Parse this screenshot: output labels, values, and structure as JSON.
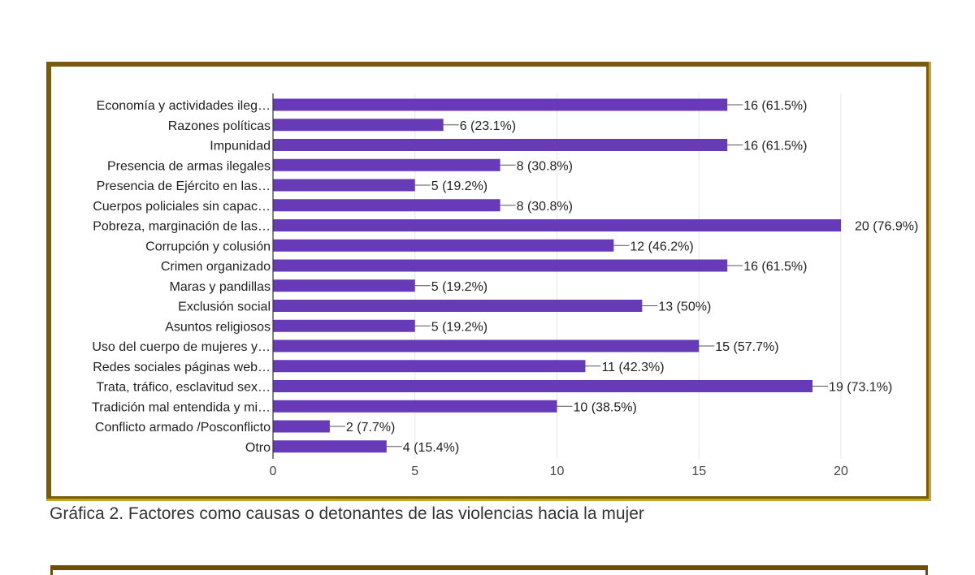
{
  "chart_data": {
    "type": "bar",
    "orientation": "horizontal",
    "categories": [
      "Economía y actividades ileg…",
      "Razones políticas",
      "Impunidad",
      "Presencia de armas ilegales",
      "Presencia de Ejército en las…",
      "Cuerpos policiales sin capac…",
      "Pobreza, marginación de las…",
      "Corrupción y colusión",
      "Crimen organizado",
      "Maras y pandillas",
      "Exclusión social",
      "Asuntos religiosos",
      "Uso del cuerpo de mujeres y…",
      "Redes sociales páginas web…",
      "Trata, tráfico, esclavitud sex…",
      "Tradición mal entendida y mi…",
      "Conflicto armado /Posconflicto",
      "Otro"
    ],
    "values": [
      16,
      6,
      16,
      8,
      5,
      8,
      20,
      12,
      16,
      5,
      13,
      5,
      15,
      11,
      19,
      10,
      2,
      4
    ],
    "data_labels": [
      "16 (61.5%)",
      "6 (23.1%)",
      "16 (61.5%)",
      "8 (30.8%)",
      "5 (19.2%)",
      "8 (30.8%)",
      "20 (76.9%)",
      "12 (46.2%)",
      "16 (61.5%)",
      "5 (19.2%)",
      "13 (50%)",
      "5 (19.2%)",
      "15 (57.7%)",
      "11 (42.3%)",
      "19 (73.1%)",
      "10 (38.5%)",
      "2 (7.7%)",
      "4 (15.4%)"
    ],
    "xlim": [
      0,
      20
    ],
    "xticks": [
      0,
      5,
      10,
      15,
      20
    ],
    "grid": true,
    "bar_color": "#673ab7",
    "title": "",
    "xlabel": "",
    "ylabel": ""
  },
  "caption": "Gráfica 2. Factores como causas o detonantes de las violencias hacia la mujer",
  "colors": {
    "frame_border": "#7a5a0e",
    "frame_accent": "#c9a227"
  }
}
